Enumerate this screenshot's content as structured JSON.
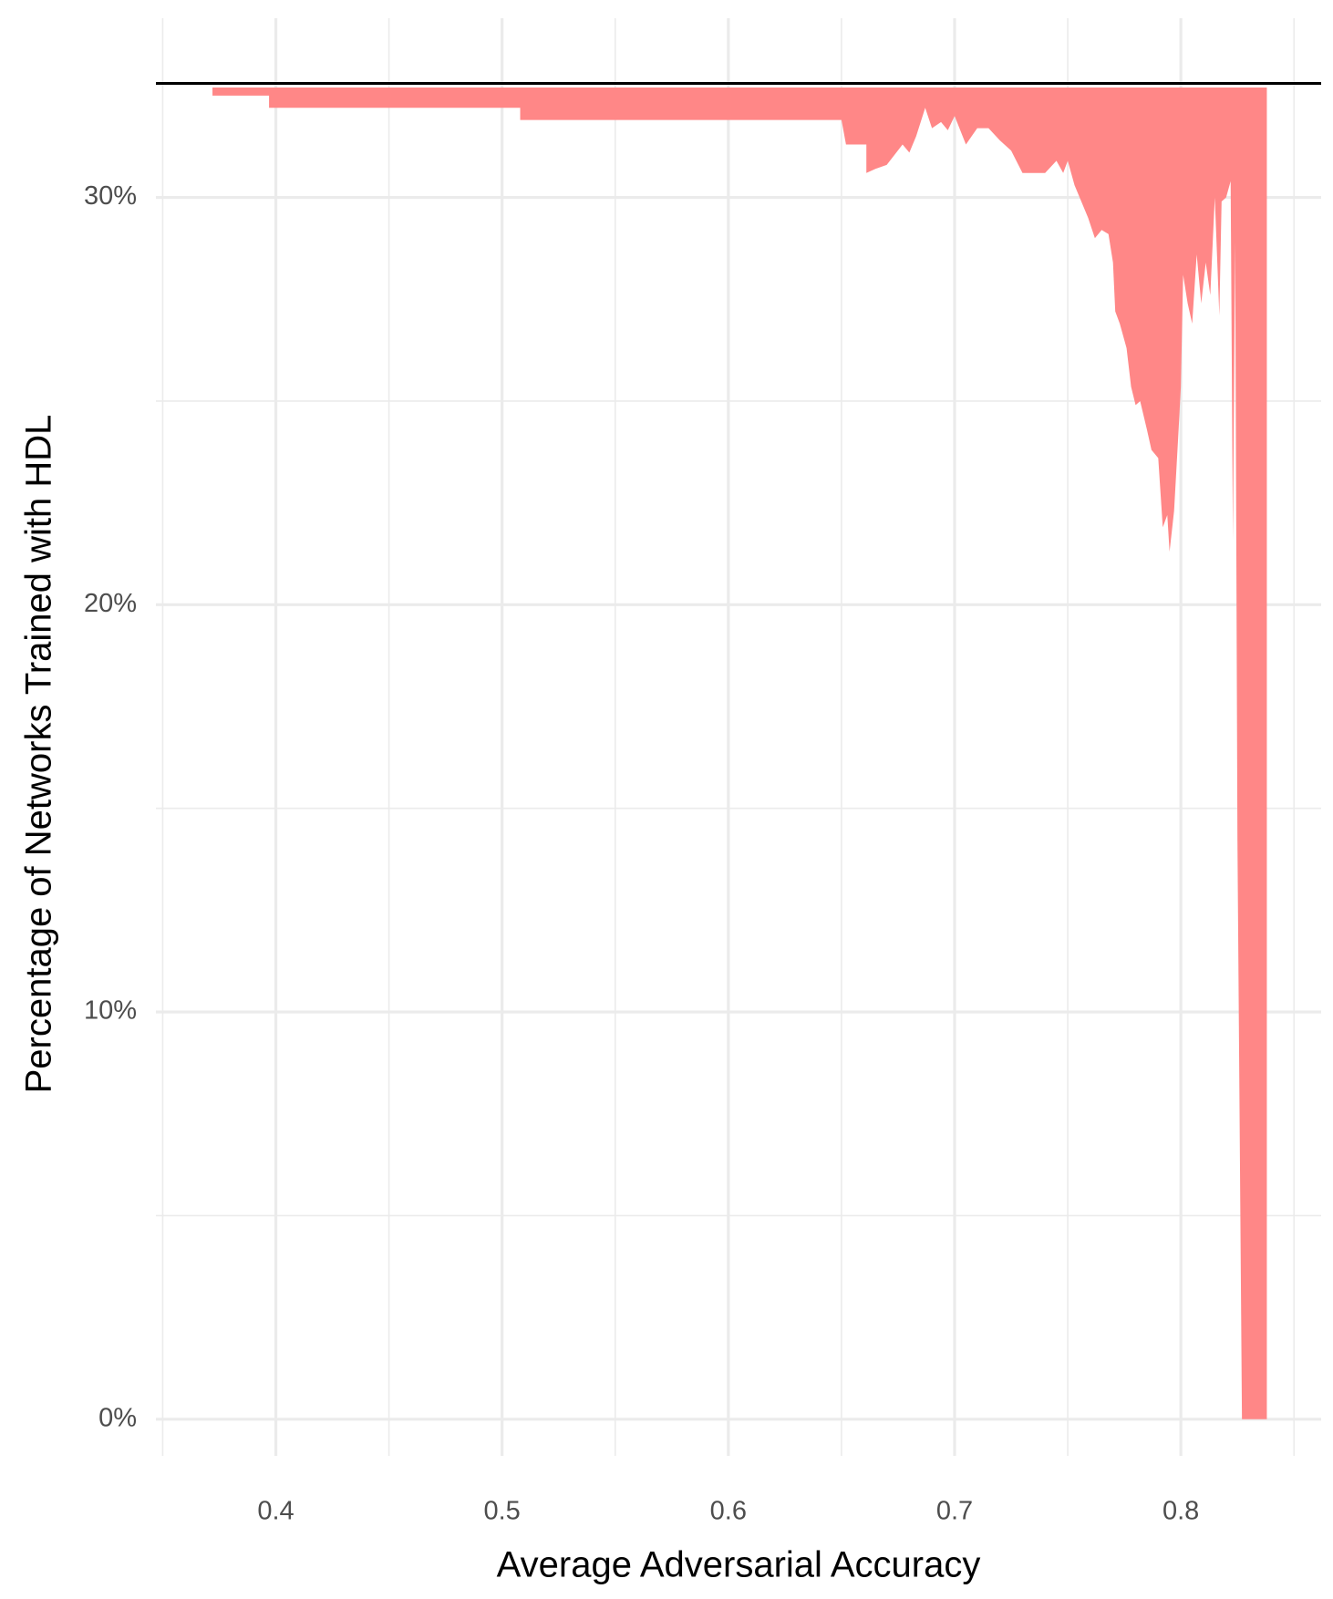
{
  "chart_data": {
    "type": "ribbon",
    "x_label": "Average Adversarial Accuracy",
    "y_label": "Percentage of Networks Trained with HDL",
    "x": [
      0.372,
      0.397,
      0.397,
      0.508,
      0.508,
      0.65,
      0.652,
      0.661,
      0.661,
      0.665,
      0.67,
      0.677,
      0.68,
      0.683,
      0.687,
      0.69,
      0.694,
      0.697,
      0.7,
      0.705,
      0.71,
      0.715,
      0.72,
      0.725,
      0.73,
      0.74,
      0.745,
      0.748,
      0.75,
      0.753,
      0.756,
      0.759,
      0.762,
      0.765,
      0.768,
      0.77,
      0.771,
      0.773,
      0.776,
      0.778,
      0.78,
      0.782,
      0.785,
      0.787,
      0.79,
      0.792,
      0.794,
      0.795,
      0.797,
      0.799,
      0.8,
      0.801,
      0.803,
      0.805,
      0.807,
      0.809,
      0.811,
      0.813,
      0.815,
      0.817,
      0.818,
      0.82,
      0.822,
      0.823,
      0.824,
      0.825,
      0.827,
      0.838
    ],
    "values": [
      32.5,
      32.5,
      32.2,
      32.2,
      31.9,
      31.9,
      31.3,
      31.3,
      30.6,
      30.7,
      30.8,
      31.3,
      31.1,
      31.5,
      32.2,
      31.7,
      31.85,
      31.65,
      32.0,
      31.3,
      31.7,
      31.7,
      31.4,
      31.15,
      30.6,
      30.6,
      30.9,
      30.6,
      30.9,
      30.3,
      29.9,
      29.5,
      29.0,
      29.2,
      29.1,
      28.4,
      27.2,
      26.9,
      26.3,
      25.35,
      24.9,
      25.0,
      24.3,
      23.8,
      23.6,
      21.9,
      22.2,
      21.3,
      22.3,
      24.3,
      25.35,
      28.1,
      27.4,
      26.9,
      28.6,
      27.4,
      28.4,
      27.6,
      30.0,
      27.1,
      29.9,
      30.0,
      30.4,
      21.6,
      28.9,
      14.25,
      0,
      0
    ],
    "ribbon_top": 32.7,
    "hline": 32.8,
    "color": "#ff8787",
    "xlim": [
      0.347,
      0.862
    ],
    "ylim": [
      -0.9,
      34.4
    ],
    "xticks": [
      0.4,
      0.5,
      0.6,
      0.7,
      0.8
    ],
    "x_minor_ticks": [
      0.35,
      0.45,
      0.55,
      0.65,
      0.75,
      0.85
    ],
    "yticks": [
      {
        "value": 0,
        "label": "0%"
      },
      {
        "value": 10,
        "label": "10%"
      },
      {
        "value": 20,
        "label": "20%"
      },
      {
        "value": 30,
        "label": "30%"
      }
    ],
    "y_minor_ticks": [
      5,
      15,
      25
    ],
    "grid": true
  }
}
